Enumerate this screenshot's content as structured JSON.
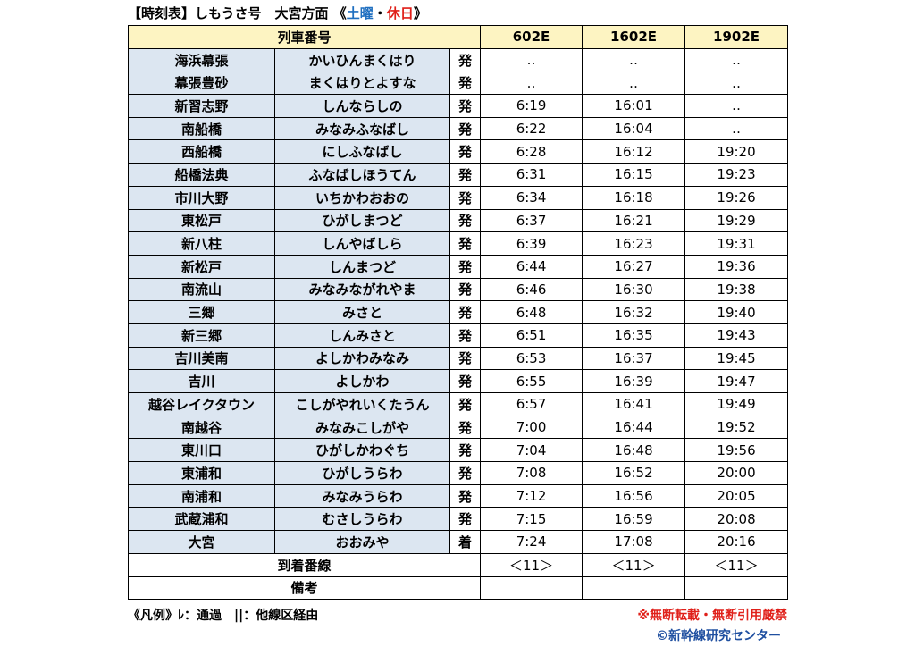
{
  "title": {
    "prefix": "【時刻表】しもうさ号　大宮方面 《",
    "sat": "土曜",
    "dot": "・",
    "hol": "休日",
    "suffix": "》"
  },
  "table": {
    "header": "列車番号",
    "trains": [
      "602E",
      "1602E",
      "1902E"
    ],
    "rows": [
      [
        "海浜幕張",
        "かいひんまくはり",
        "発",
        "‥",
        "‥",
        "‥"
      ],
      [
        "幕張豊砂",
        "まくはりとよすな",
        "発",
        "‥",
        "‥",
        "‥"
      ],
      [
        "新習志野",
        "しんならしの",
        "発",
        "6:19",
        "16:01",
        "‥"
      ],
      [
        "南船橋",
        "みなみふなばし",
        "発",
        "6:22",
        "16:04",
        "‥"
      ],
      [
        "西船橋",
        "にしふなばし",
        "発",
        "6:28",
        "16:12",
        "19:20"
      ],
      [
        "船橋法典",
        "ふなばしほうてん",
        "発",
        "6:31",
        "16:15",
        "19:23"
      ],
      [
        "市川大野",
        "いちかわおおの",
        "発",
        "6:34",
        "16:18",
        "19:26"
      ],
      [
        "東松戸",
        "ひがしまつど",
        "発",
        "6:37",
        "16:21",
        "19:29"
      ],
      [
        "新八柱",
        "しんやばしら",
        "発",
        "6:39",
        "16:23",
        "19:31"
      ],
      [
        "新松戸",
        "しんまつど",
        "発",
        "6:44",
        "16:27",
        "19:36"
      ],
      [
        "南流山",
        "みなみながれやま",
        "発",
        "6:46",
        "16:30",
        "19:38"
      ],
      [
        "三郷",
        "みさと",
        "発",
        "6:48",
        "16:32",
        "19:40"
      ],
      [
        "新三郷",
        "しんみさと",
        "発",
        "6:51",
        "16:35",
        "19:43"
      ],
      [
        "吉川美南",
        "よしかわみなみ",
        "発",
        "6:53",
        "16:37",
        "19:45"
      ],
      [
        "吉川",
        "よしかわ",
        "発",
        "6:55",
        "16:39",
        "19:47"
      ],
      [
        "越谷レイクタウン",
        "こしがやれいくたうん",
        "発",
        "6:57",
        "16:41",
        "19:49"
      ],
      [
        "南越谷",
        "みなみこしがや",
        "発",
        "7:00",
        "16:44",
        "19:52"
      ],
      [
        "東川口",
        "ひがしかわぐち",
        "発",
        "7:04",
        "16:48",
        "19:56"
      ],
      [
        "東浦和",
        "ひがしうらわ",
        "発",
        "7:08",
        "16:52",
        "20:00"
      ],
      [
        "南浦和",
        "みなみうらわ",
        "発",
        "7:12",
        "16:56",
        "20:05"
      ],
      [
        "武蔵浦和",
        "むさしうらわ",
        "発",
        "7:15",
        "16:59",
        "20:08"
      ],
      [
        "大宮",
        "おおみや",
        "着",
        "7:24",
        "17:08",
        "20:16"
      ]
    ],
    "platform": {
      "label": "到着番線",
      "values": [
        "＜11＞",
        "＜11＞",
        "＜11＞"
      ]
    },
    "remarks": {
      "label": "備考"
    }
  },
  "legend": "《凡例》ﾚ：通過　||：他線区経由",
  "warning": "※無断転載・無断引用厳禁",
  "credit": "©新幹線研究センター"
}
